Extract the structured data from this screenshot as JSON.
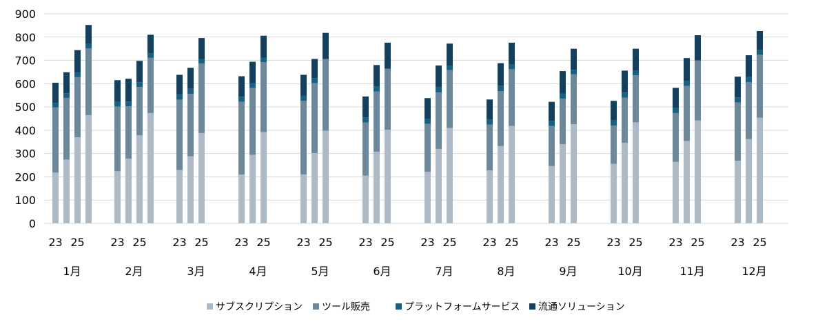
{
  "chart_data": {
    "type": "bar",
    "stacked": true,
    "title": "",
    "xlabel": "",
    "ylabel": "",
    "ylim": [
      0,
      900
    ],
    "yticks": [
      0,
      100,
      200,
      300,
      400,
      500,
      600,
      700,
      800,
      900
    ],
    "grid": true,
    "legend_position": "bottom",
    "categories": [
      "1月",
      "2月",
      "3月",
      "4月",
      "5月",
      "6月",
      "7月",
      "8月",
      "9月",
      "10月",
      "11月",
      "12月"
    ],
    "bars_per_group": [
      "23",
      "24",
      "25",
      "26"
    ],
    "group_tick_labels": [
      "23",
      "25"
    ],
    "series": [
      {
        "name": "サブスクリプション",
        "color": "#adb9c4",
        "values": [
          [
            218,
            274,
            370,
            465
          ],
          [
            224,
            278,
            378,
            474
          ],
          [
            229,
            288,
            388,
            null
          ],
          [
            210,
            294,
            392,
            null
          ],
          [
            210,
            302,
            398,
            null
          ],
          [
            205,
            308,
            402,
            null
          ],
          [
            222,
            320,
            410,
            null
          ],
          [
            228,
            332,
            418,
            null
          ],
          [
            246,
            340,
            426,
            null
          ],
          [
            256,
            346,
            434,
            null
          ],
          [
            264,
            354,
            442,
            null
          ],
          [
            269,
            362,
            454,
            null
          ]
        ]
      },
      {
        "name": "ツール販売",
        "color": "#6f8899",
        "values": [
          [
            280,
            265,
            258,
            286
          ],
          [
            278,
            225,
            208,
            237
          ],
          [
            302,
            268,
            298,
            null
          ],
          [
            312,
            288,
            300,
            null
          ],
          [
            316,
            300,
            308,
            null
          ],
          [
            228,
            258,
            262,
            null
          ],
          [
            206,
            242,
            248,
            null
          ],
          [
            196,
            236,
            244,
            null
          ],
          [
            172,
            196,
            214,
            null
          ],
          [
            164,
            194,
            202,
            null
          ],
          [
            210,
            236,
            258,
            null
          ],
          [
            250,
            244,
            270,
            null
          ]
        ]
      },
      {
        "name": "プラットフォームサービス",
        "color": "#1a5f80",
        "values": [
          [
            20,
            20,
            20,
            20
          ],
          [
            20,
            20,
            20,
            20
          ],
          [
            22,
            22,
            20,
            null
          ],
          [
            22,
            22,
            20,
            null
          ],
          [
            22,
            22,
            0,
            null
          ],
          [
            22,
            22,
            0,
            null
          ],
          [
            22,
            22,
            20,
            null
          ],
          [
            22,
            22,
            20,
            null
          ],
          [
            22,
            22,
            20,
            null
          ],
          [
            22,
            22,
            20,
            null
          ],
          [
            22,
            22,
            0,
            null
          ],
          [
            22,
            22,
            20,
            null
          ]
        ]
      },
      {
        "name": "流通ソリューション",
        "color": "#163f5c",
        "values": [
          [
            86,
            90,
            96,
            81
          ],
          [
            93,
            98,
            92,
            79
          ],
          [
            85,
            90,
            90,
            null
          ],
          [
            88,
            90,
            94,
            null
          ],
          [
            90,
            82,
            112,
            null
          ],
          [
            90,
            92,
            112,
            null
          ],
          [
            88,
            94,
            94,
            null
          ],
          [
            86,
            98,
            94,
            null
          ],
          [
            82,
            96,
            90,
            null
          ],
          [
            84,
            94,
            94,
            null
          ],
          [
            86,
            98,
            108,
            null
          ],
          [
            89,
            94,
            82,
            null
          ]
        ]
      }
    ]
  }
}
